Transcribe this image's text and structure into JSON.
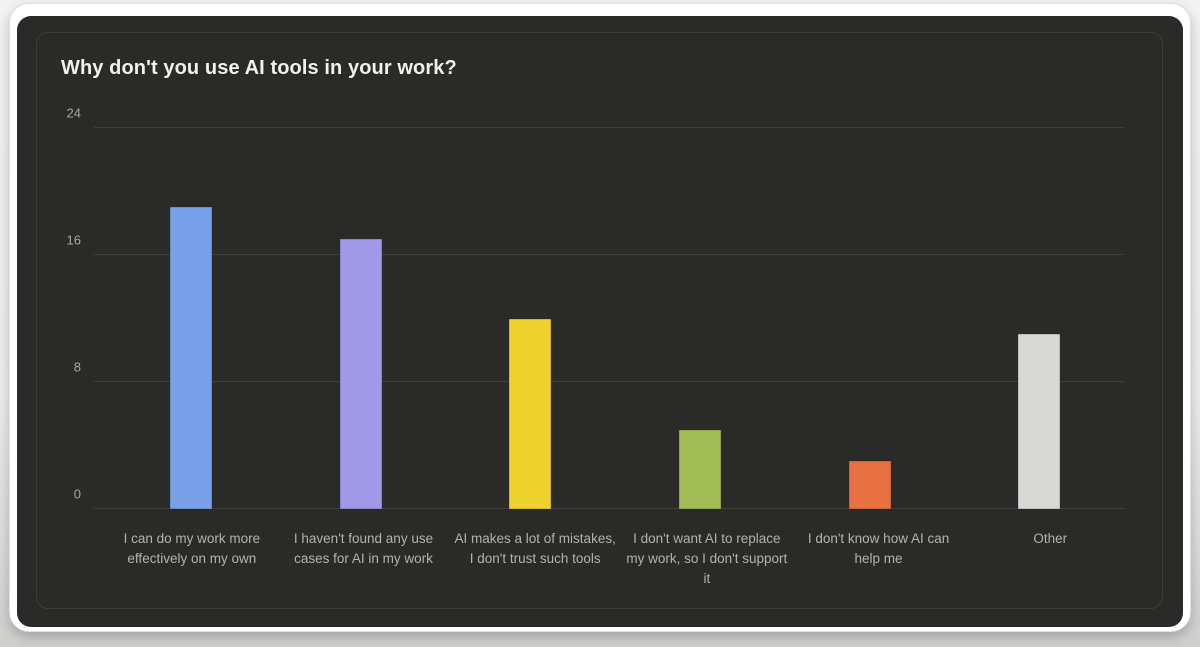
{
  "chart_data": {
    "type": "bar",
    "title": "Why don't you use AI tools in your work?",
    "categories": [
      "I can do my work more effectively on my own",
      "I haven't found any use cases for AI in my work",
      "AI makes a lot of mistakes, I don't trust such tools",
      "I don't want AI to replace my work, so I don't support it",
      "I don't know how AI can help me",
      "Other"
    ],
    "values": [
      19,
      17,
      12,
      5,
      3,
      11
    ],
    "colors": [
      "#7AA0E9",
      "#A099E8",
      "#F0D22F",
      "#A3BD56",
      "#E87142",
      "#D8D8D7"
    ],
    "xlabel": "",
    "ylabel": "",
    "ylim": [
      0,
      24
    ],
    "yticks": [
      0,
      8,
      16,
      24
    ],
    "grid": true,
    "legend_position": "none"
  }
}
